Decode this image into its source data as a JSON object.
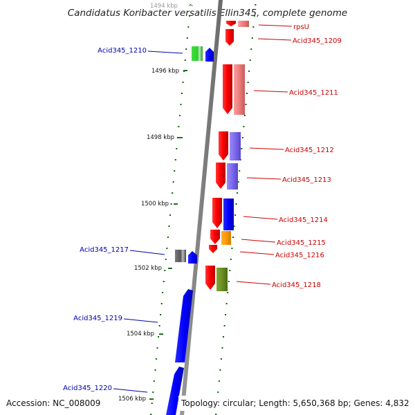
{
  "title": "Candidatus Koribacter versatilis Ellin345, complete genome",
  "footer": {
    "accession": "Accession: NC_008009",
    "topology": "Topology: circular; Length: 5,650,368 bp; Genes: 4,832"
  },
  "axis": {
    "ticks": [
      {
        "label": "1494 kbp",
        "faded": true
      },
      {
        "label": "1496 kbp",
        "faded": false
      },
      {
        "label": "1498 kbp",
        "faded": false
      },
      {
        "label": "1500 kbp",
        "faded": false
      },
      {
        "label": "1502 kbp",
        "faded": false
      },
      {
        "label": "1504 kbp",
        "faded": false
      },
      {
        "label": "1506 kbp",
        "faded": false
      }
    ]
  },
  "colors": {
    "forward_label": "#cc0000",
    "reverse_label": "#0000aa",
    "red": "#ff0000",
    "salmon": "#f08080",
    "green": "#2ecc2e",
    "blue": "#0000ff",
    "purple": "#7b68ee",
    "orange": "#ff9900",
    "olive": "#6b8e23",
    "gray": "#606060",
    "spine": "#8c8c8c",
    "dots": "#006400"
  },
  "genes": {
    "forward": [
      "rpsU",
      "Acid345_1209",
      "Acid345_1211",
      "Acid345_1212",
      "Acid345_1213",
      "Acid345_1214",
      "Acid345_1215",
      "Acid345_1216",
      "Acid345_1218"
    ],
    "reverse": [
      "Acid345_1210",
      "Acid345_1217",
      "Acid345_1219",
      "Acid345_1220"
    ]
  }
}
